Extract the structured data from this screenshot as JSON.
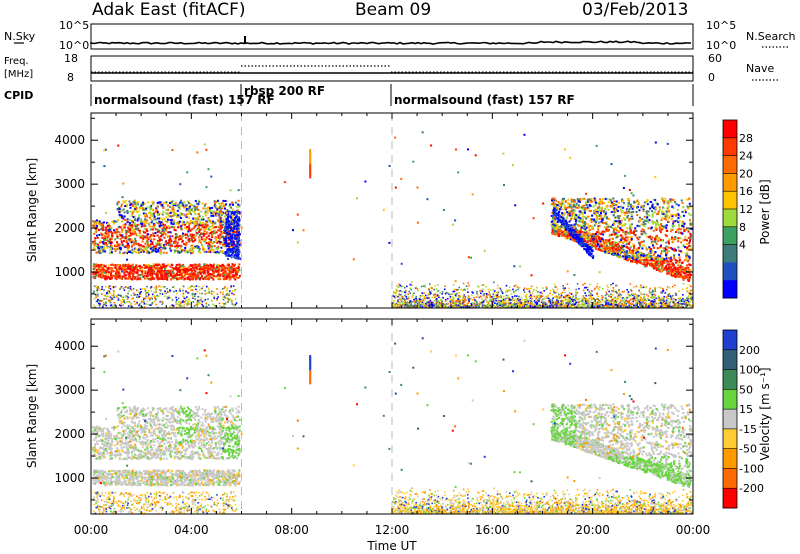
{
  "header": {
    "station": "Adak East (fitACF)",
    "beam": "Beam 09",
    "date": "03/Feb/2013"
  },
  "chart_data": {
    "type": "heatmap",
    "time_axis": {
      "label": "Time UT",
      "ticks": [
        "00:00",
        "04:00",
        "08:00",
        "12:00",
        "16:00",
        "20:00",
        "00:00"
      ],
      "range_hours": [
        0,
        24
      ]
    },
    "range_axis": {
      "label": "Slant Range [km]",
      "ticks": [
        1000,
        2000,
        3000,
        4000
      ],
      "range_km": [
        180,
        4620
      ]
    },
    "top_panels": {
      "noise": {
        "left_label": "N.Sky",
        "right_label": "N.Search",
        "left_ticks": [
          "10^5",
          "10^0"
        ],
        "right_ticks": [
          "10^5",
          "10^0"
        ]
      },
      "freq": {
        "left_label_line1": "Freq.",
        "left_label_line2": "[MHz]",
        "right_label": "Nave",
        "left_ticks": [
          "18",
          "8"
        ],
        "right_ticks": [
          "60",
          "0"
        ]
      },
      "cpid": {
        "label": "CPID",
        "segments": [
          {
            "start_h": 0,
            "end_h": 6,
            "text": "normalsound (fast) 157 RF"
          },
          {
            "start_h": 6,
            "end_h": 12,
            "text": "rbsp 200 RF"
          },
          {
            "start_h": 12,
            "end_h": 24,
            "text": "normalsound (fast) 157 RF"
          }
        ]
      }
    },
    "power": {
      "title": "Power [dB]",
      "colorbar_labels": [
        "28",
        "24",
        "20",
        "16",
        "12",
        "8",
        "4"
      ],
      "colors": [
        "#ff0000",
        "#ff3a00",
        "#ff6a00",
        "#ff9a00",
        "#ffc400",
        "#9edb3c",
        "#3ea060",
        "#3e7b7b",
        "#2050c0",
        "#0000ff"
      ]
    },
    "velocity": {
      "title": "Velocity [m s⁻¹]",
      "colorbar_labels": [
        "200",
        "100",
        "50",
        "15",
        "-15",
        "-50",
        "-100",
        "-200"
      ],
      "colors": [
        "#2040d0",
        "#306078",
        "#3c8a58",
        "#66d63c",
        "#c8c8c8",
        "#ffcc33",
        "#ff9900",
        "#ff6a00",
        "#ff0000"
      ]
    }
  }
}
